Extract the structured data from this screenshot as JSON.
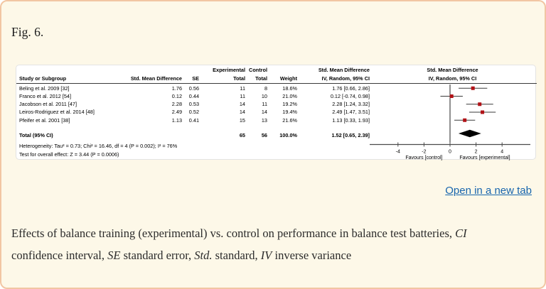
{
  "colors": {
    "card_background": "#fdf8e8",
    "card_border": "#f2c6a3",
    "link_blue": "#1765ad",
    "marker_red": "#b11116",
    "diamond_black": "#000000"
  },
  "figure": {
    "label": "Fig. 6.",
    "open_in_new_tab": "Open in a new tab"
  },
  "forest_table": {
    "header_row1": {
      "experimental": "Experimental",
      "control": "Control",
      "smd": "Std. Mean Difference"
    },
    "header_row2": {
      "study": "Study or Subgroup",
      "smd": "Std. Mean Difference",
      "se": "SE",
      "total_exp": "Total",
      "total_ctrl": "Total",
      "weight": "Weight",
      "iv": "IV, Random, 95% CI"
    },
    "plot_header": {
      "line1": "Std. Mean Difference",
      "line2": "IV, Random, 95% CI"
    },
    "rows": [
      {
        "study": "Beling et al. 2009 [32]",
        "smd": "1.76",
        "se": "0.56",
        "exp_total": "11",
        "ctrl_total": "8",
        "weight": "18.6%",
        "ci": "1.76 [0.66, 2.86]"
      },
      {
        "study": "Franco et al. 2012 [54]",
        "smd": "0.12",
        "se": "0.44",
        "exp_total": "11",
        "ctrl_total": "10",
        "weight": "21.0%",
        "ci": "0.12 [-0.74, 0.98]"
      },
      {
        "study": "Jacobson et al. 2011 [47]",
        "smd": "2.28",
        "se": "0.53",
        "exp_total": "14",
        "ctrl_total": "11",
        "weight": "19.2%",
        "ci": "2.28 [1.24, 3.32]"
      },
      {
        "study": "Leiros-Rodriguez et al. 2014 [48]",
        "smd": "2.49",
        "se": "0.52",
        "exp_total": "14",
        "ctrl_total": "14",
        "weight": "19.4%",
        "ci": "2.49 [1.47, 3.51]"
      },
      {
        "study": "Pfeifer et al. 2001 [38]",
        "smd": "1.13",
        "se": "0.41",
        "exp_total": "15",
        "ctrl_total": "13",
        "weight": "21.6%",
        "ci": "1.13 [0.33, 1.93]"
      }
    ],
    "total_row": {
      "label": "Total (95% CI)",
      "exp_total": "65",
      "ctrl_total": "56",
      "weight": "100.0%",
      "ci": "1.52 [0.65, 2.39]"
    },
    "heterogeneity": "Heterogeneity: Tau² = 0.73; Chi² = 16.46, df = 4 (P = 0.002); I² = 76%",
    "overall_effect": "Test for overall effect: Z = 3.44 (P = 0.0006)"
  },
  "chart_data": {
    "type": "scatter",
    "subtype": "forest-plot",
    "title": "Std. Mean Difference, IV, Random, 95% CI",
    "studies": [
      {
        "name": "Beling et al. 2009 [32]",
        "effect": 1.76,
        "ci_low": 0.66,
        "ci_high": 2.86,
        "weight_pct": 18.6
      },
      {
        "name": "Franco et al. 2012 [54]",
        "effect": 0.12,
        "ci_low": -0.74,
        "ci_high": 0.98,
        "weight_pct": 21.0
      },
      {
        "name": "Jacobson et al. 2011 [47]",
        "effect": 2.28,
        "ci_low": 1.24,
        "ci_high": 3.32,
        "weight_pct": 19.2
      },
      {
        "name": "Leiros-Rodriguez et al. 2014 [48]",
        "effect": 2.49,
        "ci_low": 1.47,
        "ci_high": 3.51,
        "weight_pct": 19.4
      },
      {
        "name": "Pfeifer et al. 2001 [38]",
        "effect": 1.13,
        "ci_low": 0.33,
        "ci_high": 1.93,
        "weight_pct": 21.6
      }
    ],
    "total": {
      "effect": 1.52,
      "ci_low": 0.65,
      "ci_high": 2.39
    },
    "x_ticks": [
      -4,
      -2,
      0,
      2,
      4
    ],
    "xlim": [
      -6.2,
      6.3
    ],
    "zero_line": 0,
    "grid": false,
    "axis_labels": {
      "left": "Favours [control]",
      "right": "Favours [experimental]"
    },
    "marker_color": "#b11116",
    "diamond_color": "#000000"
  },
  "caption": {
    "line1_text": "Effects of balance training (experimental) vs. control on performance in balance test batteries, ",
    "line1_term": "CI",
    "line2_p1": "confidence interval, ",
    "line2_t1": "SE",
    "line2_p2": " standard error, ",
    "line2_t2": "Std.",
    "line2_p3": " standard, ",
    "line2_t3": "IV",
    "line2_p4": " inverse variance"
  }
}
